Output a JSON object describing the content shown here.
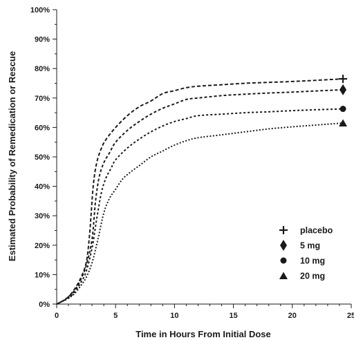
{
  "chart_data": {
    "type": "line",
    "xlabel": "Time in Hours From Initial Dose",
    "ylabel": "Estimated Probability of Remedication or Rescue",
    "xlim": [
      0,
      25
    ],
    "ylim": [
      0,
      100
    ],
    "x_ticks": [
      "0",
      "5",
      "10",
      "15",
      "20",
      "25"
    ],
    "y_ticks": [
      "0%",
      "10%",
      "20%",
      "30%",
      "40%",
      "50%",
      "60%",
      "70%",
      "80%",
      "90%",
      "100%"
    ],
    "grid": false,
    "legend_position": "bottom-right",
    "series": [
      {
        "name": "placebo",
        "marker": "plus",
        "x": [
          0,
          0.5,
          1,
          1.5,
          2,
          2.5,
          2.8,
          3.1,
          3.4,
          3.8,
          4.2,
          5,
          6,
          7,
          8,
          9,
          10,
          11,
          12,
          14,
          16,
          18,
          20,
          22,
          24.3
        ],
        "values": [
          0,
          1,
          2.5,
          5,
          8.5,
          14,
          24,
          40,
          48,
          53,
          56,
          60,
          64,
          67,
          69,
          71.5,
          72.5,
          73.5,
          74,
          74.5,
          75,
          75.3,
          75.6,
          76,
          76.5
        ]
      },
      {
        "name": "5 mg",
        "marker": "diamond",
        "x": [
          0,
          0.5,
          1,
          1.5,
          2,
          2.5,
          3,
          3.3,
          3.6,
          4,
          4.5,
          5,
          6,
          7,
          8,
          9,
          10,
          11,
          12,
          14,
          16,
          18,
          20,
          22,
          24.3
        ],
        "values": [
          0,
          1,
          2.5,
          4.5,
          8,
          13,
          22,
          35,
          43,
          48,
          51.5,
          55,
          59,
          62,
          64.5,
          66.5,
          68,
          69.5,
          70,
          70.8,
          71.3,
          71.7,
          72,
          72.4,
          72.8
        ]
      },
      {
        "name": "10 mg",
        "marker": "circle",
        "x": [
          0,
          0.5,
          1,
          1.5,
          2,
          2.5,
          3,
          3.4,
          3.8,
          4.2,
          4.6,
          5,
          6,
          7,
          8,
          9,
          10,
          11,
          12,
          14,
          16,
          18,
          20,
          22,
          24.3
        ],
        "values": [
          0,
          1,
          2,
          4,
          7,
          11,
          19,
          29,
          38,
          43,
          46,
          49,
          53,
          56,
          58.5,
          60.5,
          62,
          63,
          64,
          64.5,
          65,
          65.3,
          65.7,
          66,
          66.3
        ]
      },
      {
        "name": "20 mg",
        "marker": "triangle",
        "x": [
          0,
          0.5,
          1,
          1.5,
          2,
          2.5,
          3,
          3.5,
          4,
          4.5,
          5,
          5.5,
          6,
          7,
          8,
          9,
          10,
          11,
          12,
          14,
          16,
          18,
          20,
          22,
          24.3
        ],
        "values": [
          0,
          1,
          2,
          3.5,
          6,
          9,
          14,
          22,
          31,
          36,
          39,
          42,
          44,
          47,
          50,
          52,
          54,
          55.5,
          56.5,
          57.5,
          58.5,
          59.5,
          60.2,
          60.8,
          61.5
        ]
      }
    ]
  }
}
